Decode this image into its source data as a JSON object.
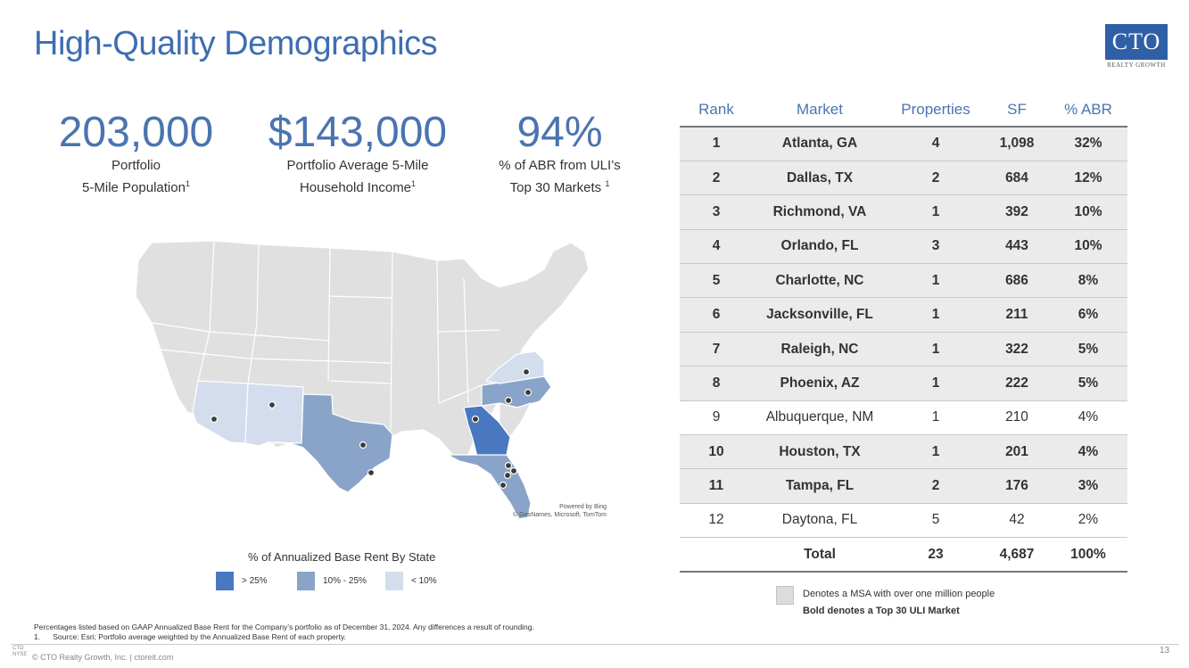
{
  "title": "High-Quality Demographics",
  "logo": {
    "text": "CTO",
    "sub": "REALTY GROWTH"
  },
  "stats": [
    {
      "value": "203,000",
      "label1": "Portfolio",
      "label2": "5-Mile Population",
      "sup": "1"
    },
    {
      "value": "$143,000",
      "label1": "Portfolio Average 5-Mile",
      "label2": "Household Income",
      "sup": "1"
    },
    {
      "value": "94%",
      "label1": "% of ABR from ULI’s",
      "label2": "Top 30 Markets ",
      "sup": "1"
    }
  ],
  "map": {
    "credit1": "Powered by Bing",
    "credit2": "© GeoNames, Microsoft, TomTom",
    "colors": {
      "high": "#4a78c0",
      "mid": "#8aa3c8",
      "low": "#d3dded",
      "base": "#e0e0e0"
    }
  },
  "legend": {
    "title": "% of Annualized Base Rent By State",
    "items": [
      {
        "label": "> 25%",
        "color": "#4a78c0"
      },
      {
        "label": "10% - 25%",
        "color": "#8aa3c8"
      },
      {
        "label": "< 10%",
        "color": "#d3dded"
      }
    ]
  },
  "table": {
    "headers": [
      "Rank",
      "Market",
      "Properties",
      "SF",
      "% ABR"
    ],
    "rows": [
      {
        "rank": "1",
        "market": "Atlanta, GA",
        "properties": "4",
        "sf": "1,098",
        "abr": "32%",
        "msa": true,
        "bold": true
      },
      {
        "rank": "2",
        "market": "Dallas, TX",
        "properties": "2",
        "sf": "684",
        "abr": "12%",
        "msa": true,
        "bold": true
      },
      {
        "rank": "3",
        "market": "Richmond, VA",
        "properties": "1",
        "sf": "392",
        "abr": "10%",
        "msa": true,
        "bold": true
      },
      {
        "rank": "4",
        "market": "Orlando, FL",
        "properties": "3",
        "sf": "443",
        "abr": "10%",
        "msa": true,
        "bold": true
      },
      {
        "rank": "5",
        "market": "Charlotte, NC",
        "properties": "1",
        "sf": "686",
        "abr": "8%",
        "msa": true,
        "bold": true
      },
      {
        "rank": "6",
        "market": "Jacksonville, FL",
        "properties": "1",
        "sf": "211",
        "abr": "6%",
        "msa": true,
        "bold": true
      },
      {
        "rank": "7",
        "market": "Raleigh, NC",
        "properties": "1",
        "sf": "322",
        "abr": "5%",
        "msa": true,
        "bold": true
      },
      {
        "rank": "8",
        "market": "Phoenix, AZ",
        "properties": "1",
        "sf": "222",
        "abr": "5%",
        "msa": true,
        "bold": true
      },
      {
        "rank": "9",
        "market": "Albuquerque, NM",
        "properties": "1",
        "sf": "210",
        "abr": "4%",
        "msa": false,
        "bold": false
      },
      {
        "rank": "10",
        "market": "Houston, TX",
        "properties": "1",
        "sf": "201",
        "abr": "4%",
        "msa": true,
        "bold": true
      },
      {
        "rank": "11",
        "market": "Tampa, FL",
        "properties": "2",
        "sf": "176",
        "abr": "3%",
        "msa": true,
        "bold": true
      },
      {
        "rank": "12",
        "market": "Daytona, FL",
        "properties": "5",
        "sf": "42",
        "abr": "2%",
        "msa": false,
        "bold": false
      }
    ],
    "total": {
      "label": "Total",
      "properties": "23",
      "sf": "4,687",
      "abr": "100%"
    }
  },
  "note": {
    "line1": "Denotes a MSA with over one million people",
    "line2": "Bold denotes a Top 30 ULI Market"
  },
  "footnotes": {
    "line1": "Percentages listed based on GAAP Annualized Base Rent for the Company’s portfolio as of December 31, 2024. Any differences a result of rounding.",
    "line2": "1.      Source: Esri; Portfolio average weighted by the Annualized Base Rent of each property."
  },
  "footer": {
    "text": "© CTO Realty Growth, Inc. | ctoreit.com",
    "mark1": "CTO",
    "mark2": "NYSE",
    "page": "13"
  }
}
